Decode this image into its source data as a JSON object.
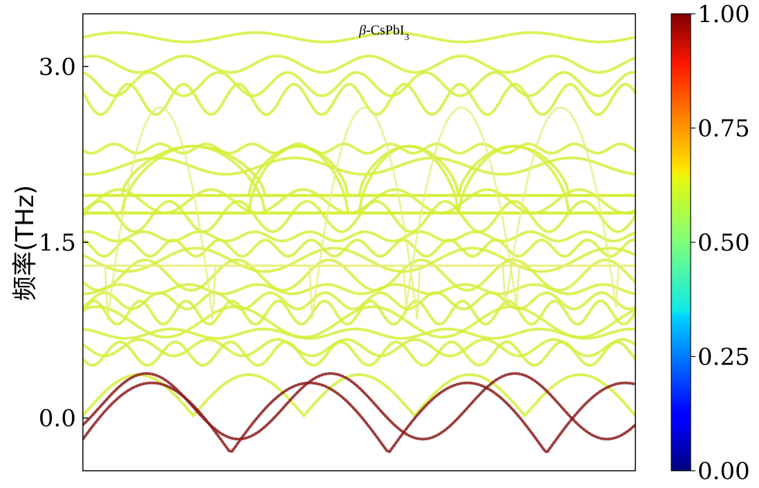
{
  "chart_data": {
    "type": "scatter",
    "title_prefix": "β",
    "title_main": "-CsPbI",
    "title_sub": "3",
    "ylabel": "频率(THz)",
    "xlabel": "",
    "ylim": [
      -0.45,
      3.45
    ],
    "xlim": [
      0,
      1
    ],
    "yticks": [
      {
        "value": 0.0,
        "label": "0.0"
      },
      {
        "value": 1.5,
        "label": "1.5"
      },
      {
        "value": 3.0,
        "label": "3.0"
      }
    ],
    "colorbar": {
      "range": [
        0,
        1
      ],
      "colormap": "jet",
      "ticks": [
        {
          "value": 0.0,
          "label": "0.00"
        },
        {
          "value": 0.25,
          "label": "0.25"
        },
        {
          "value": 0.5,
          "label": "0.50"
        },
        {
          "value": 0.75,
          "label": "0.75"
        },
        {
          "value": 1.0,
          "label": "1.00"
        }
      ]
    },
    "grid": false,
    "bands_description_color": "#d6ee3c",
    "low_band_color": "#8b1a1a"
  }
}
